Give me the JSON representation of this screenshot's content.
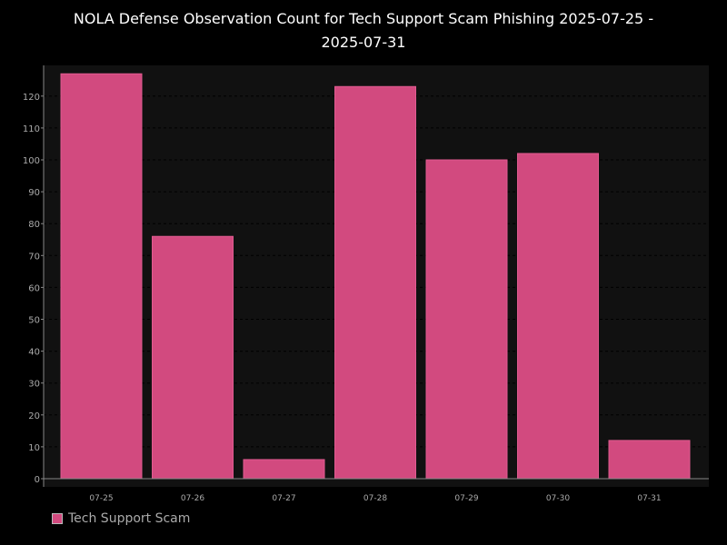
{
  "chart_data": {
    "type": "bar",
    "title_line1": "NOLA Defense Observation Count for Tech Support Scam Phishing 2025-07-25 -",
    "title_line2": "2025-07-31",
    "categories": [
      "07-25",
      "07-26",
      "07-27",
      "07-28",
      "07-29",
      "07-30",
      "07-31"
    ],
    "series": [
      {
        "name": "Tech Support Scam",
        "color": "#d24a7f",
        "values": [
          127,
          76,
          6,
          123,
          100,
          102,
          12
        ]
      }
    ],
    "ylim": [
      0,
      130
    ],
    "yticks": [
      0,
      10,
      20,
      30,
      40,
      50,
      60,
      70,
      80,
      90,
      100,
      110,
      120
    ],
    "xlabel": "",
    "ylabel": "",
    "grid": true,
    "legend_position": "bottom-left",
    "colors": {
      "page_background": "#000000",
      "plot_background": "#111111",
      "axis": "#888888",
      "tick_label": "#aaaaaa",
      "grid": "#000000"
    }
  }
}
